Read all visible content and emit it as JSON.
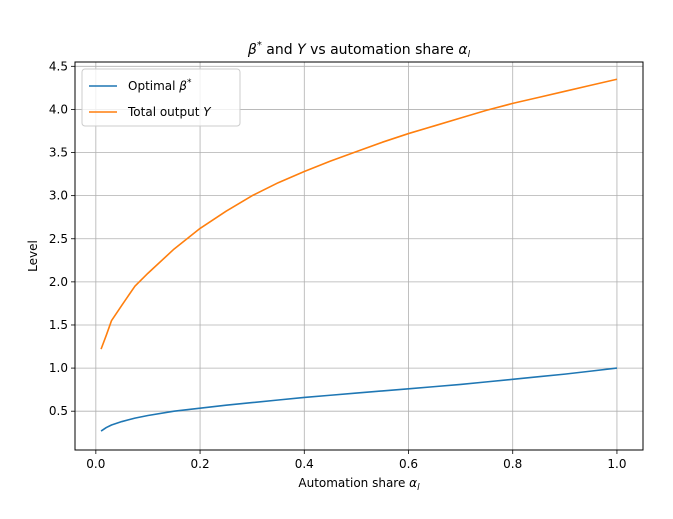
{
  "chart_data": {
    "type": "line",
    "title": {
      "beta": "β",
      "sup": "*",
      "and": " and ",
      "y": "Y",
      "mid": " vs automation share ",
      "alpha": "α",
      "sub": "l"
    },
    "xlabel": {
      "text": "Automation share ",
      "alpha": "α",
      "sub": "l"
    },
    "ylabel": "Level",
    "xlim": [
      -0.04,
      1.05
    ],
    "ylim": [
      0.05,
      4.55
    ],
    "xticks": [
      0.0,
      0.2,
      0.4,
      0.6,
      0.8,
      1.0
    ],
    "xtick_labels": [
      "0.0",
      "0.2",
      "0.4",
      "0.6",
      "0.8",
      "1.0"
    ],
    "yticks": [
      0.5,
      1.0,
      1.5,
      2.0,
      2.5,
      3.0,
      3.5,
      4.0,
      4.5
    ],
    "ytick_labels": [
      "0.5",
      "1.0",
      "1.5",
      "2.0",
      "2.5",
      "3.0",
      "3.5",
      "4.0",
      "4.5"
    ],
    "grid": true,
    "legend_position": "upper-left",
    "x": [
      0.01,
      0.02,
      0.03,
      0.05,
      0.075,
      0.1,
      0.15,
      0.2,
      0.25,
      0.3,
      0.35,
      0.4,
      0.45,
      0.5,
      0.55,
      0.6,
      0.65,
      0.7,
      0.75,
      0.8,
      0.85,
      0.9,
      0.95,
      1.0
    ],
    "series": [
      {
        "legend": {
          "text": "Optimal ",
          "sym": "β",
          "sup": "*"
        },
        "color": "#1f77b4",
        "values": [
          0.27,
          0.31,
          0.34,
          0.38,
          0.42,
          0.45,
          0.5,
          0.535,
          0.57,
          0.6,
          0.63,
          0.66,
          0.685,
          0.71,
          0.735,
          0.76,
          0.785,
          0.81,
          0.84,
          0.87,
          0.9,
          0.93,
          0.965,
          1.0
        ]
      },
      {
        "legend": {
          "text": "Total output ",
          "sym": "Y"
        },
        "color": "#ff7f0e",
        "values": [
          1.22,
          1.38,
          1.55,
          1.73,
          1.95,
          2.1,
          2.38,
          2.62,
          2.82,
          3.0,
          3.15,
          3.28,
          3.4,
          3.51,
          3.62,
          3.72,
          3.81,
          3.9,
          3.99,
          4.07,
          4.14,
          4.21,
          4.28,
          4.35
        ]
      }
    ]
  }
}
